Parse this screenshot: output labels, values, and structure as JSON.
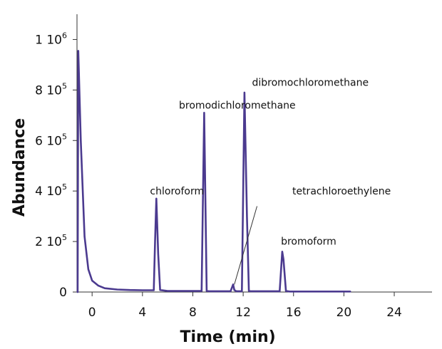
{
  "chart_data": {
    "type": "line",
    "xlabel": "Time (min)",
    "ylabel": "Abundance",
    "xlim": [
      -1.2,
      27
    ],
    "ylim": [
      0,
      1100000
    ],
    "x_ticks": [
      {
        "value": 0,
        "label": "0"
      },
      {
        "value": 4,
        "label": "4"
      },
      {
        "value": 8,
        "label": "8"
      },
      {
        "value": 12,
        "label": "12"
      },
      {
        "value": 16,
        "label": "16"
      },
      {
        "value": 20,
        "label": "20"
      },
      {
        "value": 24,
        "label": "24"
      }
    ],
    "y_ticks": [
      {
        "value": 0,
        "mant": "0",
        "exp": ""
      },
      {
        "value": 200000,
        "mant": "2 10",
        "exp": "5"
      },
      {
        "value": 400000,
        "mant": "4 10",
        "exp": "5"
      },
      {
        "value": 600000,
        "mant": "6 10",
        "exp": "5"
      },
      {
        "value": 800000,
        "mant": "8 10",
        "exp": "5"
      },
      {
        "value": 1000000,
        "mant": "1 10",
        "exp": "6"
      }
    ],
    "series": [
      {
        "color": "#4b3a8f",
        "x": [
          -1.15,
          -1.1,
          -0.9,
          -0.6,
          -0.3,
          0,
          0.5,
          1,
          2,
          3,
          4,
          4.9,
          5.0,
          5.1,
          5.25,
          5.4,
          6,
          8.7,
          8.9,
          9.1,
          9.3,
          11.0,
          11.2,
          11.3,
          11.45,
          11.7,
          11.9,
          12.1,
          12.3,
          12.45,
          12.6,
          14.9,
          15.1,
          15.2,
          15.4,
          15.7,
          18,
          20.5
        ],
        "y": [
          0,
          955000,
          600000,
          220000,
          90000,
          45000,
          25000,
          15000,
          10000,
          8000,
          7000,
          7000,
          200000,
          370000,
          150000,
          8000,
          4000,
          4000,
          710000,
          4000,
          3000,
          3000,
          30000,
          8000,
          3000,
          3000,
          3000,
          790000,
          300000,
          4000,
          3000,
          3000,
          160000,
          130000,
          4000,
          2000,
          2000,
          2000
        ]
      }
    ],
    "annotations": [
      {
        "text": "chloroform",
        "x": 4.6,
        "y": 370000
      },
      {
        "text": "bromodichloromethane",
        "x": 6.9,
        "y": 710000
      },
      {
        "text": "dibromochloromethane",
        "x": 12.7,
        "y": 800000
      },
      {
        "text": "tetrachloroethylene",
        "x": 15.9,
        "y": 370000,
        "leader_from": [
          13.1,
          340000
        ],
        "leader_to": [
          11.3,
          30000
        ]
      },
      {
        "text": "bromoform",
        "x": 15.0,
        "y": 170000
      }
    ]
  }
}
